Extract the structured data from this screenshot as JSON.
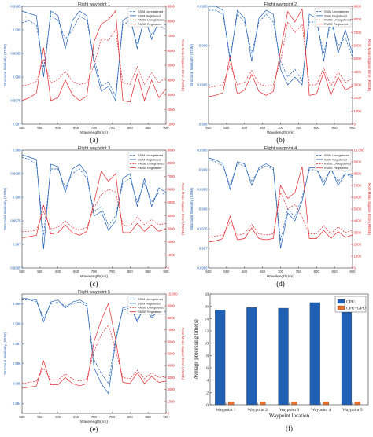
{
  "chart_data": [
    {
      "type": "line",
      "panel_label": "(a)",
      "title": "Flight waypoint 1",
      "xlabel": "Wavelength(nm)",
      "ylabel": "Structural Similarity (SSIM)",
      "y2label": "Root Mean Square Error (RMSE)",
      "xlim": [
        500,
        900
      ],
      "xticks": [
        500,
        550,
        600,
        650,
        700,
        750,
        800,
        850,
        900
      ],
      "ylim": [
        0.997,
        0.9995
      ],
      "yticks": [
        0.997,
        0.9975,
        0.998,
        0.9985,
        0.999,
        0.9995
      ],
      "y2lim": [
        1000,
        9000
      ],
      "y2ticks": [
        1000,
        2000,
        3000,
        4000,
        5000,
        6000,
        7000,
        8000,
        9000
      ],
      "legend": [
        "SSIM Unregistered",
        "SSIM Registered",
        "RMSE Unregistered",
        "RMSE Registered"
      ],
      "x": [
        500,
        520,
        540,
        560,
        580,
        600,
        620,
        640,
        660,
        680,
        700,
        720,
        740,
        760,
        780,
        800,
        820,
        840,
        860,
        880,
        900
      ],
      "series": [
        {
          "name": "SSIM Unregistered",
          "axis": "left",
          "values": [
            0.99915,
            0.9992,
            0.9991,
            0.9982,
            0.9993,
            0.9992,
            0.9988,
            0.999,
            0.9993,
            0.9992,
            0.9984,
            0.9978,
            0.9979,
            0.9976,
            0.9991,
            0.9992,
            0.9987,
            0.9992,
            0.9989,
            0.9991,
            0.999
          ]
        },
        {
          "name": "SSIM Registered",
          "axis": "left",
          "values": [
            0.9994,
            0.99935,
            0.9993,
            0.998,
            0.9994,
            0.9993,
            0.9986,
            0.9992,
            0.9994,
            0.9993,
            0.9983,
            0.9977,
            0.9978,
            0.9975,
            0.9992,
            0.9993,
            0.9986,
            0.9993,
            0.9988,
            0.9992,
            0.9991
          ]
        },
        {
          "name": "RMSE Unregistered",
          "axis": "right",
          "values": [
            3600,
            3700,
            3900,
            5400,
            3800,
            4000,
            4600,
            3900,
            3700,
            3800,
            5000,
            6800,
            6700,
            7400,
            3800,
            3700,
            4900,
            3700,
            4500,
            3800,
            4200
          ]
        },
        {
          "name": "RMSE Registered",
          "axis": "right",
          "values": [
            2600,
            2800,
            3100,
            6200,
            2600,
            2800,
            4000,
            3000,
            2600,
            2900,
            6600,
            7800,
            8100,
            8700,
            2600,
            2500,
            4400,
            2600,
            4000,
            2800,
            3400
          ]
        }
      ]
    },
    {
      "type": "line",
      "panel_label": "(b)",
      "title": "Flight waypoint 2",
      "xlabel": "Wavelength(nm)",
      "ylabel": "Structural Similarity (SSIM)",
      "y2label": "Root Mean Square Error (RMSE)",
      "xlim": [
        500,
        900
      ],
      "xticks": [
        500,
        550,
        600,
        650,
        700,
        750,
        800,
        850,
        900
      ],
      "ylim": [
        0.998,
        0.9995
      ],
      "yticks": [
        0.998,
        0.9985,
        0.999,
        0.9995
      ],
      "y2lim": [
        0,
        9000
      ],
      "y2ticks": [
        0,
        1000,
        2000,
        3000,
        4000,
        5000,
        6000,
        7000,
        8000,
        9000
      ],
      "legend": [
        "SSIM Unregistered",
        "SSIM Registered",
        "RMSE Unregistered",
        "RMSE Registered"
      ],
      "x": [
        500,
        520,
        540,
        560,
        580,
        600,
        620,
        640,
        660,
        680,
        700,
        720,
        740,
        760,
        780,
        800,
        820,
        840,
        860,
        880,
        900
      ],
      "series": [
        {
          "name": "SSIM Unregistered",
          "axis": "left",
          "values": [
            0.99945,
            0.99945,
            0.9994,
            0.99885,
            0.9994,
            0.9993,
            0.9989,
            0.9993,
            0.9994,
            0.9993,
            0.9988,
            0.9986,
            0.9987,
            0.99855,
            0.9993,
            0.9993,
            0.9989,
            0.9993,
            0.999,
            0.9991,
            0.99885
          ]
        },
        {
          "name": "SSIM Registered",
          "axis": "left",
          "values": [
            0.9995,
            0.9995,
            0.99945,
            0.9988,
            0.99945,
            0.99935,
            0.9988,
            0.99935,
            0.99945,
            0.9994,
            0.9987,
            0.9985,
            0.9986,
            0.9985,
            0.9994,
            0.99935,
            0.9988,
            0.9994,
            0.9989,
            0.9992,
            0.9989
          ]
        },
        {
          "name": "RMSE Unregistered",
          "axis": "right",
          "values": [
            2800,
            2900,
            3000,
            4600,
            3000,
            3200,
            4100,
            3100,
            2900,
            3000,
            4800,
            7800,
            7000,
            7600,
            3000,
            3000,
            4300,
            2900,
            4000,
            3200,
            3500
          ]
        },
        {
          "name": "RMSE Registered",
          "axis": "right",
          "values": [
            2100,
            2200,
            2400,
            5200,
            2300,
            2600,
            3800,
            2500,
            2200,
            2500,
            5600,
            8600,
            7800,
            8800,
            2200,
            2300,
            4000,
            2200,
            3600,
            2600,
            2900
          ]
        }
      ]
    },
    {
      "type": "line",
      "panel_label": "(c)",
      "title": "Flight waypoint 3",
      "xlabel": "Wavelength(nm)",
      "ylabel": "Structural Similarity (SSIM)",
      "y2label": "Root Mean Square Error (RMSE)",
      "xlim": [
        500,
        900
      ],
      "xticks": [
        500,
        550,
        600,
        650,
        700,
        750,
        800,
        850,
        900
      ],
      "ylim": [
        0.9965,
        0.999
      ],
      "yticks": [
        0.9965,
        0.997,
        0.9975,
        0.998,
        0.9985,
        0.999
      ],
      "y2lim": [
        0,
        9000
      ],
      "y2ticks": [
        0,
        1000,
        2000,
        3000,
        4000,
        5000,
        6000,
        7000,
        8000,
        9000
      ],
      "legend": [
        "SSIM Unregistered",
        "SSIM Registered",
        "RMSE Unregistered",
        "RMSE Registered"
      ],
      "x": [
        500,
        520,
        540,
        560,
        580,
        600,
        620,
        640,
        660,
        680,
        700,
        720,
        740,
        760,
        780,
        800,
        820,
        840,
        860,
        880,
        900
      ],
      "series": [
        {
          "name": "SSIM Unregistered",
          "axis": "left",
          "values": [
            0.99885,
            0.9988,
            0.9987,
            0.9972,
            0.9986,
            0.9986,
            0.9982,
            0.9985,
            0.9986,
            0.9984,
            0.9977,
            0.9978,
            0.9974,
            0.9976,
            0.9983,
            0.9984,
            0.9979,
            0.9983,
            0.9979,
            0.9981,
            0.99805
          ]
        },
        {
          "name": "SSIM Registered",
          "axis": "left",
          "values": [
            0.9989,
            0.99885,
            0.9988,
            0.9969,
            0.9987,
            0.99865,
            0.9981,
            0.9986,
            0.9987,
            0.9985,
            0.9976,
            0.9977,
            0.9973,
            0.9975,
            0.9984,
            0.9985,
            0.9978,
            0.9984,
            0.9978,
            0.9982,
            0.9981
          ]
        },
        {
          "name": "RMSE Unregistered",
          "axis": "right",
          "values": [
            2800,
            2800,
            2900,
            4300,
            3000,
            3100,
            3600,
            3100,
            2900,
            3100,
            4600,
            5600,
            6000,
            5800,
            3300,
            3200,
            3900,
            3300,
            3700,
            3300,
            3400
          ]
        },
        {
          "name": "RMSE Registered",
          "axis": "right",
          "values": [
            2300,
            2400,
            2500,
            4800,
            2600,
            2700,
            3300,
            2700,
            2500,
            2800,
            5000,
            7400,
            6600,
            7200,
            2700,
            2700,
            3400,
            2800,
            3300,
            2800,
            3000
          ]
        }
      ]
    },
    {
      "type": "line",
      "panel_label": "(d)",
      "title": "Flight waypoint 4",
      "xlabel": "Wavelength(nm)",
      "ylabel": "Structural Similarity (SSIM)",
      "y2label": "Root Mean Square Error (RMSE)",
      "xlim": [
        500,
        900
      ],
      "xticks": [
        500,
        550,
        600,
        650,
        700,
        750,
        800,
        850,
        900
      ],
      "ylim": [
        0.9965,
        0.9995
      ],
      "yticks": [
        0.9965,
        0.997,
        0.9975,
        0.998,
        0.9985,
        0.999,
        0.9995
      ],
      "y2lim": [
        0,
        10000
      ],
      "y2ticks": [
        0,
        1000,
        2000,
        3000,
        4000,
        5000,
        6000,
        7000,
        8000,
        9000,
        10000
      ],
      "legend": [
        "SSIM Unregistered",
        "SSIM Registered",
        "RMSE Unregistered",
        "RMSE Registered"
      ],
      "x": [
        500,
        520,
        540,
        560,
        580,
        600,
        620,
        640,
        660,
        680,
        700,
        720,
        740,
        760,
        780,
        800,
        820,
        840,
        860,
        880,
        900
      ],
      "series": [
        {
          "name": "SSIM Unregistered",
          "axis": "left",
          "values": [
            0.99925,
            0.9992,
            0.9991,
            0.9986,
            0.99915,
            0.9991,
            0.9987,
            0.999,
            0.9991,
            0.999,
            0.9972,
            0.998,
            0.9978,
            0.9983,
            0.999,
            0.999,
            0.9987,
            0.999,
            0.9987,
            0.9989,
            0.9988
          ]
        },
        {
          "name": "SSIM Registered",
          "axis": "left",
          "values": [
            0.9993,
            0.99925,
            0.99915,
            0.9985,
            0.9992,
            0.99915,
            0.9986,
            0.99905,
            0.99915,
            0.99905,
            0.997,
            0.9979,
            0.9977,
            0.9982,
            0.99905,
            0.99905,
            0.9986,
            0.99905,
            0.9986,
            0.9989,
            0.99885
          ]
        },
        {
          "name": "RMSE Unregistered",
          "axis": "right",
          "values": [
            2600,
            2700,
            2800,
            3900,
            2800,
            2900,
            3700,
            2900,
            2800,
            2900,
            6400,
            5000,
            5400,
            4300,
            2900,
            2900,
            3600,
            2900,
            3500,
            3000,
            3200
          ]
        },
        {
          "name": "RMSE Registered",
          "axis": "right",
          "values": [
            2200,
            2300,
            2500,
            4400,
            2400,
            2500,
            3400,
            2500,
            2400,
            2500,
            7000,
            5900,
            6400,
            8600,
            2500,
            2500,
            3200,
            2500,
            3100,
            2600,
            2800
          ]
        }
      ]
    },
    {
      "type": "line",
      "panel_label": "(e)",
      "title": "Flight waypoint 5",
      "xlabel": "Wavelength(nm)",
      "ylabel": "Structural Similarity (SSIM)",
      "y2label": "Root Mean Square Error (RMSE)",
      "xlim": [
        500,
        900
      ],
      "xticks": [
        500,
        550,
        600,
        650,
        700,
        750,
        800,
        850,
        900
      ],
      "ylim": [
        0.9935,
        0.9995
      ],
      "yticks": [
        0.994,
        0.995,
        0.996,
        0.997,
        0.998,
        0.999
      ],
      "y2lim": [
        0,
        10000
      ],
      "y2ticks": [
        0,
        1000,
        2000,
        3000,
        4000,
        5000,
        6000,
        7000,
        8000,
        9000,
        10000
      ],
      "legend": [
        "SSIM Unregistered",
        "SSIM Registered",
        "RMSE Unregistered",
        "RMSE Registered"
      ],
      "x": [
        500,
        520,
        540,
        560,
        580,
        600,
        620,
        640,
        660,
        680,
        700,
        720,
        740,
        760,
        780,
        800,
        820,
        840,
        860,
        880,
        900
      ],
      "series": [
        {
          "name": "SSIM Unregistered",
          "axis": "left",
          "values": [
            0.9992,
            0.9992,
            0.9991,
            0.9983,
            0.999,
            0.9991,
            0.9989,
            0.999,
            0.9991,
            0.9989,
            0.9962,
            0.9955,
            0.995,
            0.9973,
            0.9987,
            0.9988,
            0.9982,
            0.9988,
            0.9984,
            0.9986,
            0.9985
          ]
        },
        {
          "name": "SSIM Registered",
          "axis": "left",
          "values": [
            0.9993,
            0.99925,
            0.9992,
            0.9981,
            0.9991,
            0.9992,
            0.9988,
            0.9991,
            0.9992,
            0.999,
            0.9958,
            0.995,
            0.9945,
            0.9971,
            0.9988,
            0.9989,
            0.9981,
            0.9989,
            0.9983,
            0.9987,
            0.9986
          ]
        },
        {
          "name": "RMSE Unregistered",
          "axis": "right",
          "values": [
            2500,
            2600,
            2700,
            3800,
            2800,
            2800,
            3300,
            2900,
            2700,
            2900,
            5200,
            6600,
            7400,
            5300,
            3000,
            2900,
            3600,
            2900,
            3400,
            3000,
            3100
          ]
        },
        {
          "name": "RMSE Registered",
          "axis": "right",
          "values": [
            2100,
            2200,
            2300,
            4400,
            2400,
            2400,
            3000,
            2500,
            2300,
            2500,
            6000,
            7800,
            9200,
            6200,
            2600,
            2500,
            3400,
            2500,
            3100,
            2600,
            2700
          ]
        }
      ]
    },
    {
      "type": "bar",
      "panel_label": "(f)",
      "xlabel": "Waypoint location",
      "ylabel": "Average processing time(s)",
      "ylim": [
        0,
        18
      ],
      "yticks": [
        0,
        2,
        4,
        6,
        8,
        10,
        12,
        14,
        16,
        18
      ],
      "categories": [
        "Waypoint 1",
        "Waypoint 2",
        "Waypoint 3",
        "Waypoint 4",
        "Waypoint 5"
      ],
      "legend_position": "top-right",
      "series": [
        {
          "name": "CPU",
          "color": "#1f5fb4",
          "values": [
            15.4,
            15.8,
            15.7,
            16.6,
            15.5
          ]
        },
        {
          "name": "CPU+GPU",
          "color": "#e8702a",
          "values": [
            0.45,
            0.45,
            0.45,
            0.45,
            0.45
          ]
        }
      ]
    }
  ],
  "colors": {
    "ssim": "#1f5fb4",
    "rmse": "#e0262b",
    "cpu": "#1f5fb4",
    "gpu": "#e8702a"
  }
}
